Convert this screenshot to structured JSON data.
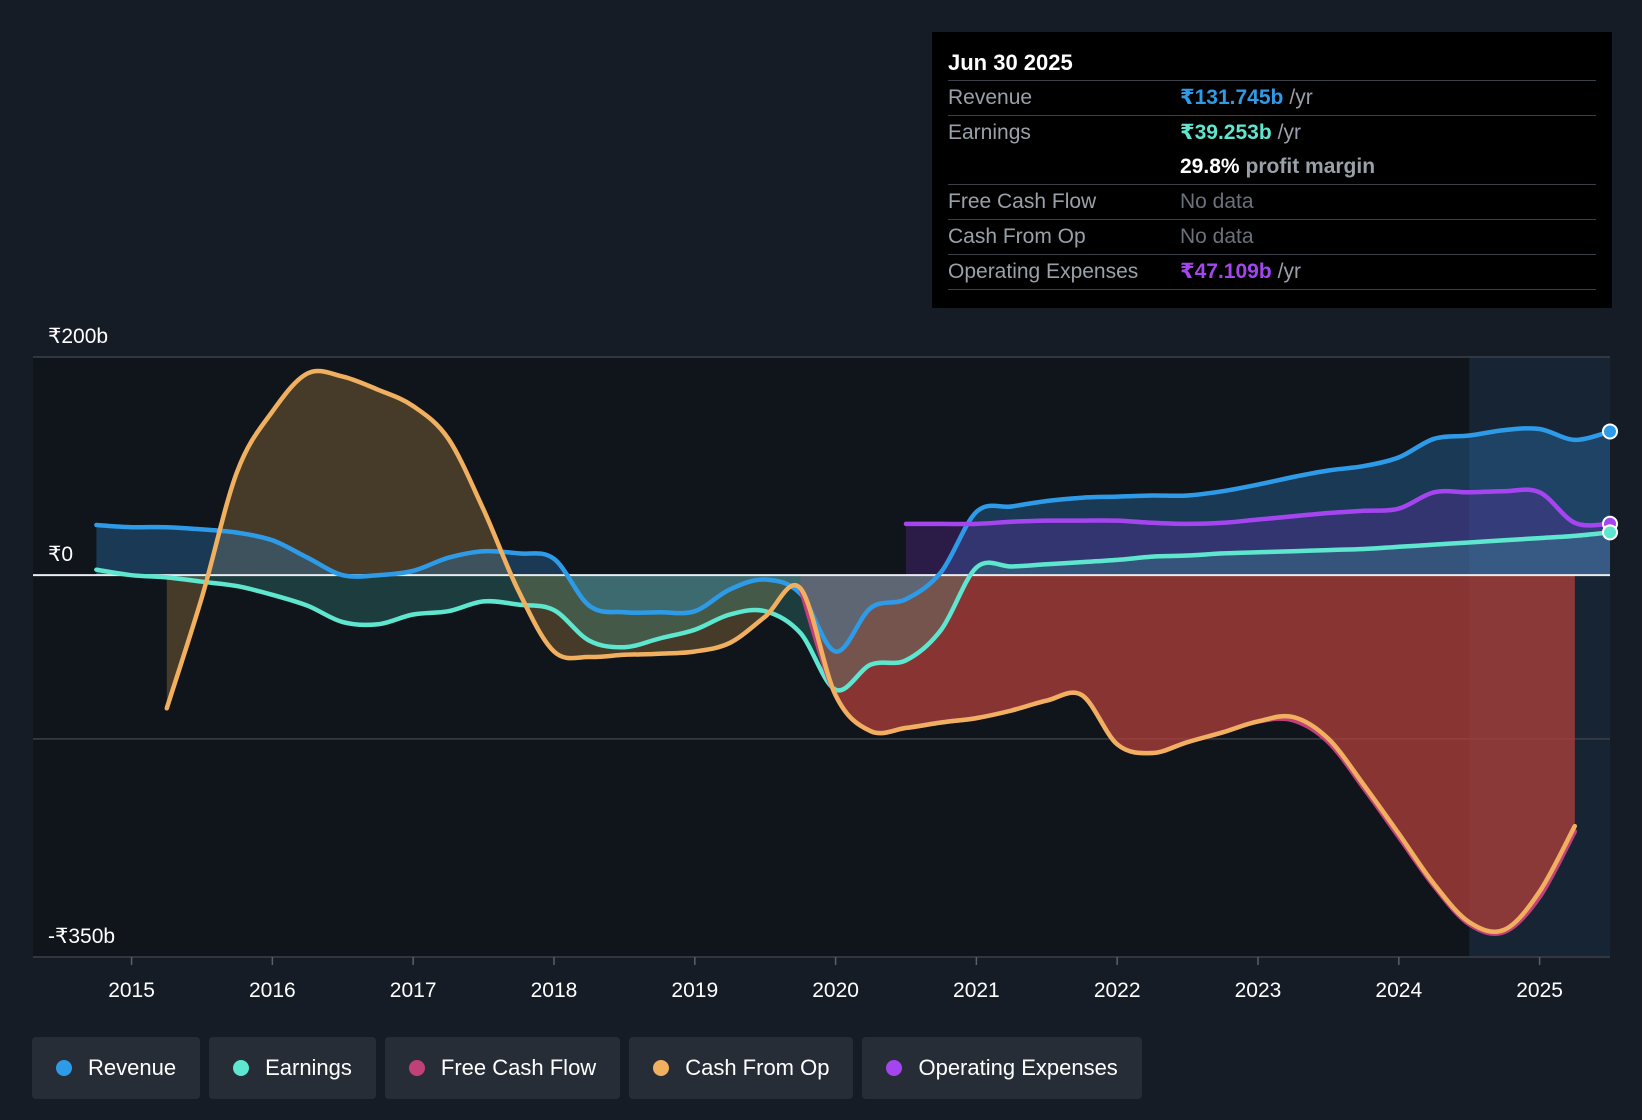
{
  "tooltip": {
    "date": "Jun 30 2025",
    "revenue_label": "Revenue",
    "revenue_value": "₹131.745b",
    "earnings_label": "Earnings",
    "earnings_value": "₹39.253b",
    "margin_value": "29.8%",
    "margin_text": "profit margin",
    "fcf_label": "Free Cash Flow",
    "fcf_value": "No data",
    "cfo_label": "Cash From Op",
    "cfo_value": "No data",
    "opex_label": "Operating Expenses",
    "opex_value": "₹47.109b",
    "unit": "/yr"
  },
  "colors": {
    "revenue": "#2e9be8",
    "earnings": "#5ee6cf",
    "fcf": "#c2407a",
    "cfo": "#f0b060",
    "opex": "#a545f0",
    "background": "#161c26"
  },
  "legend": [
    {
      "label": "Revenue",
      "color": "#2e9be8"
    },
    {
      "label": "Earnings",
      "color": "#5ee6cf"
    },
    {
      "label": "Free Cash Flow",
      "color": "#c2407a"
    },
    {
      "label": "Cash From Op",
      "color": "#f0b060"
    },
    {
      "label": "Operating Expenses",
      "color": "#a545f0"
    }
  ],
  "chart_data": {
    "type": "area",
    "title": "",
    "xlabel": "",
    "ylabel": "",
    "ylim": [
      -350,
      200
    ],
    "y_tick_labels": [
      "₹200b",
      "₹0",
      "-₹350b"
    ],
    "y_tick_values": [
      200,
      0,
      -350
    ],
    "x_tick_labels": [
      "2015",
      "2016",
      "2017",
      "2018",
      "2019",
      "2020",
      "2021",
      "2022",
      "2023",
      "2024",
      "2025"
    ],
    "x_tick_values": [
      2015,
      2016,
      2017,
      2018,
      2019,
      2020,
      2021,
      2022,
      2023,
      2024,
      2025
    ],
    "xlim": [
      2014.3,
      2025.5
    ],
    "forecast_region_start": 2024.5,
    "series": [
      {
        "name": "Revenue",
        "x": [
          2014.75,
          2015.0,
          2015.25,
          2015.5,
          2015.75,
          2016.0,
          2016.25,
          2016.5,
          2016.75,
          2017.0,
          2017.25,
          2017.5,
          2017.75,
          2018.0,
          2018.25,
          2018.5,
          2018.75,
          2019.0,
          2019.25,
          2019.5,
          2019.75,
          2020.0,
          2020.25,
          2020.5,
          2020.75,
          2021.0,
          2021.25,
          2021.5,
          2021.75,
          2022.0,
          2022.25,
          2022.5,
          2022.75,
          2023.0,
          2023.25,
          2023.5,
          2023.75,
          2024.0,
          2024.25,
          2024.5,
          2024.75,
          2025.0,
          2025.25,
          2025.5
        ],
        "values": [
          46,
          44,
          44,
          42,
          39,
          32,
          16,
          0,
          0,
          4,
          16,
          22,
          20,
          15,
          -28,
          -34,
          -34,
          -33,
          -13,
          -4,
          -17,
          -70,
          -30,
          -22,
          3,
          58,
          63,
          68,
          71,
          72,
          73,
          73,
          77,
          83,
          90,
          96,
          100,
          108,
          125,
          128,
          133,
          134,
          124,
          131.745
        ]
      },
      {
        "name": "Earnings",
        "x": [
          2014.75,
          2015.0,
          2015.25,
          2015.5,
          2015.75,
          2016.0,
          2016.25,
          2016.5,
          2016.75,
          2017.0,
          2017.25,
          2017.5,
          2017.75,
          2018.0,
          2018.25,
          2018.5,
          2018.75,
          2019.0,
          2019.25,
          2019.5,
          2019.75,
          2020.0,
          2020.25,
          2020.5,
          2020.75,
          2021.0,
          2021.25,
          2021.5,
          2021.75,
          2022.0,
          2022.25,
          2022.5,
          2022.75,
          2023.0,
          2023.25,
          2023.5,
          2023.75,
          2024.0,
          2024.25,
          2024.5,
          2024.75,
          2025.0,
          2025.25,
          2025.5
        ],
        "values": [
          5,
          0,
          -2,
          -6,
          -10,
          -18,
          -28,
          -43,
          -45,
          -36,
          -33,
          -24,
          -27,
          -32,
          -60,
          -66,
          -58,
          -50,
          -36,
          -33,
          -53,
          -105,
          -82,
          -78,
          -50,
          7,
          8,
          10,
          12,
          14,
          17,
          18,
          20,
          21,
          22,
          23,
          24,
          26,
          28,
          30,
          32,
          34,
          36,
          39.253
        ]
      },
      {
        "name": "Free Cash Flow",
        "x": [
          2019.75,
          2020.0,
          2020.25,
          2020.5,
          2020.75,
          2021.0,
          2021.25,
          2021.5,
          2021.75,
          2022.0,
          2022.25,
          2022.5,
          2022.75,
          2023.0,
          2023.25,
          2023.5,
          2023.75,
          2024.0,
          2024.25,
          2024.5,
          2024.75,
          2025.0,
          2025.25
        ],
        "values": [
          -12,
          -110,
          -143,
          -140,
          -135,
          -131,
          -124,
          -115,
          -110,
          -155,
          -163,
          -153,
          -144,
          -134,
          -133,
          -153,
          -195,
          -240,
          -285,
          -320,
          -327,
          -295,
          -235
        ]
      },
      {
        "name": "Cash From Op",
        "x": [
          2015.25,
          2015.5,
          2015.75,
          2016.0,
          2016.25,
          2016.5,
          2016.75,
          2017.0,
          2017.25,
          2017.5,
          2017.75,
          2018.0,
          2018.25,
          2018.5,
          2018.75,
          2019.0,
          2019.25,
          2019.5,
          2019.75,
          2020.0,
          2020.25,
          2020.5,
          2020.75,
          2021.0,
          2021.25,
          2021.5,
          2021.75,
          2022.0,
          2022.25,
          2022.5,
          2022.75,
          2023.0,
          2023.25,
          2023.5,
          2023.75,
          2024.0,
          2024.25,
          2024.5,
          2024.75,
          2025.0,
          2025.25
        ],
        "values": [
          -122,
          -20,
          95,
          150,
          185,
          182,
          170,
          155,
          125,
          60,
          -15,
          -70,
          -75,
          -73,
          -72,
          -70,
          -62,
          -38,
          -12,
          -110,
          -143,
          -140,
          -135,
          -131,
          -124,
          -115,
          -110,
          -155,
          -163,
          -153,
          -144,
          -134,
          -130,
          -150,
          -192,
          -237,
          -283,
          -318,
          -325,
          -290,
          -230
        ]
      },
      {
        "name": "Operating Expenses",
        "x": [
          2020.5,
          2020.75,
          2021.0,
          2021.25,
          2021.5,
          2021.75,
          2022.0,
          2022.25,
          2022.5,
          2022.75,
          2023.0,
          2023.25,
          2023.5,
          2023.75,
          2024.0,
          2024.25,
          2024.5,
          2024.75,
          2025.0,
          2025.25,
          2025.5
        ],
        "values": [
          47,
          47,
          47,
          49,
          50,
          50,
          50,
          48,
          47,
          48,
          51,
          54,
          57,
          59,
          61,
          76,
          76,
          77,
          76,
          48,
          47.109
        ]
      }
    ]
  }
}
